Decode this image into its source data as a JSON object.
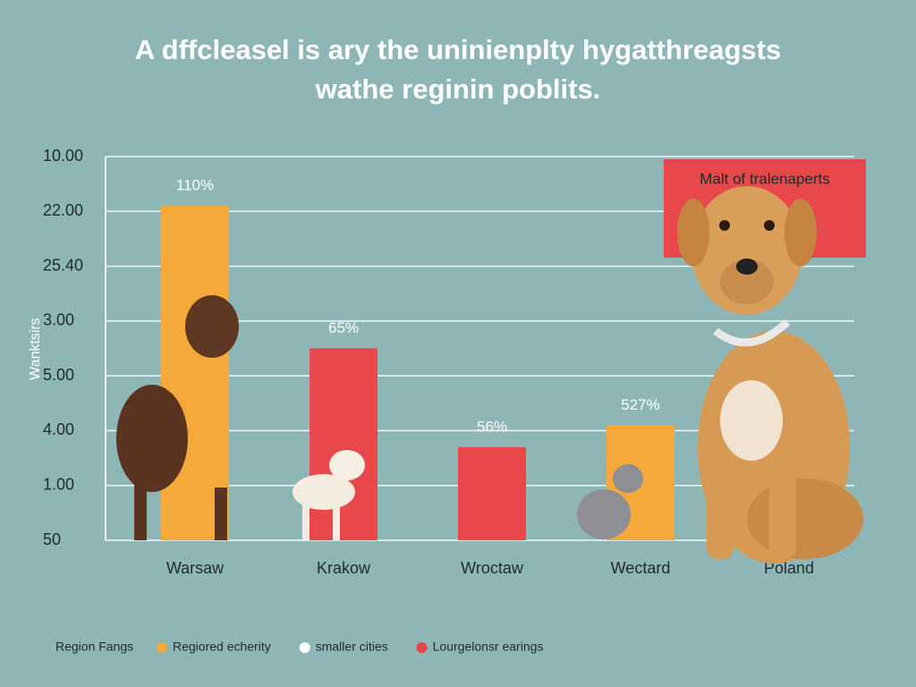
{
  "chart_data": {
    "type": "bar",
    "title": "A dffcleasel is ary the uninienplty hygatthreagsts",
    "subtitle": "wathe reginin poblits.",
    "y_label": "Wanktsirs",
    "categories": [
      "Warsaw",
      "Krakow",
      "Wroctaw",
      "Wectard",
      "Poland"
    ],
    "values": [
      6.1,
      3.5,
      1.7,
      2.1,
      null
    ],
    "colors": [
      "#f5a93a",
      "#e8474c",
      "#e8474c",
      "#f5a93a",
      null
    ],
    "annotations": [
      "110%",
      "65%",
      "56%",
      "527%"
    ],
    "callout": "Malt of tralenaperts",
    "ylim": [
      0,
      7
    ],
    "yticks": [
      {
        "value": 0,
        "label": "50"
      },
      {
        "value": 1,
        "label": "1.00"
      },
      {
        "value": 2,
        "label": "4.00"
      },
      {
        "value": 3,
        "label": "5.00"
      },
      {
        "value": 4,
        "label": "3.00"
      },
      {
        "value": 5,
        "label": "25.40"
      },
      {
        "value": 6,
        "label": "22.00"
      },
      {
        "value": 7,
        "label": "10.00"
      }
    ],
    "grid": true,
    "legend_title": "Region Fangs",
    "legend": [
      {
        "name": "Regiored echerity",
        "color": "#f5a93a"
      },
      {
        "name": "smaller cities",
        "color": "#ffffff"
      },
      {
        "name": "Lourgelonsr earings",
        "color": "#e8474c"
      }
    ]
  }
}
